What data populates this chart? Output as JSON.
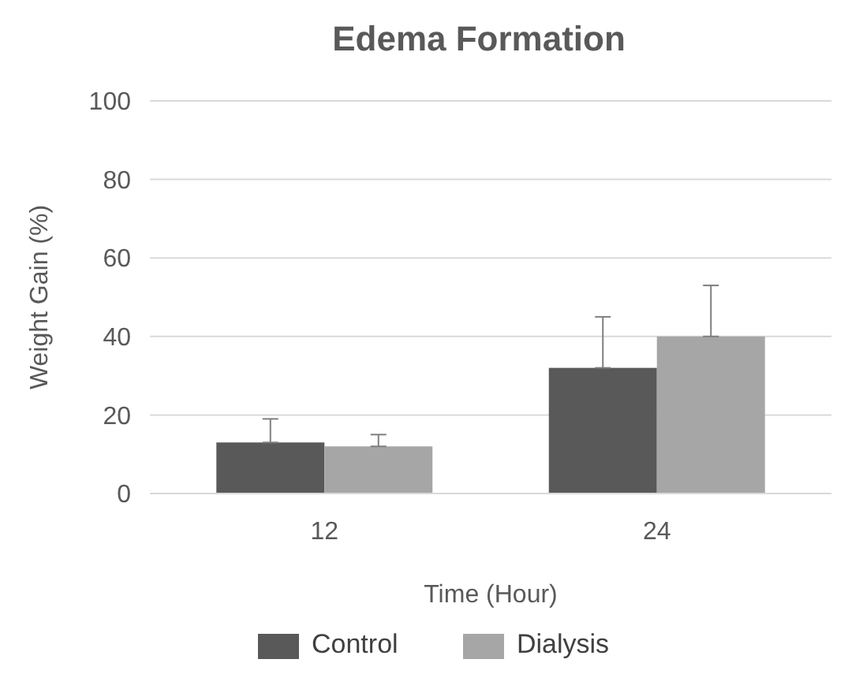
{
  "chart_data": {
    "type": "bar",
    "title": "Edema Formation",
    "xlabel": "Time (Hour)",
    "ylabel": "Weight Gain (%)",
    "categories": [
      "12",
      "24"
    ],
    "series": [
      {
        "name": "Control",
        "color": "#595959",
        "values": [
          13,
          32
        ],
        "errors": [
          [
            13,
            19
          ],
          [
            32,
            45
          ]
        ]
      },
      {
        "name": "Dialysis",
        "color": "#a6a6a6",
        "values": [
          12,
          40
        ],
        "errors": [
          [
            12,
            15
          ],
          [
            40,
            53
          ]
        ]
      }
    ],
    "ylim": [
      0,
      100
    ],
    "yticks": [
      0,
      20,
      40,
      60,
      80,
      100
    ],
    "grid": "y",
    "legend": "bottom"
  }
}
